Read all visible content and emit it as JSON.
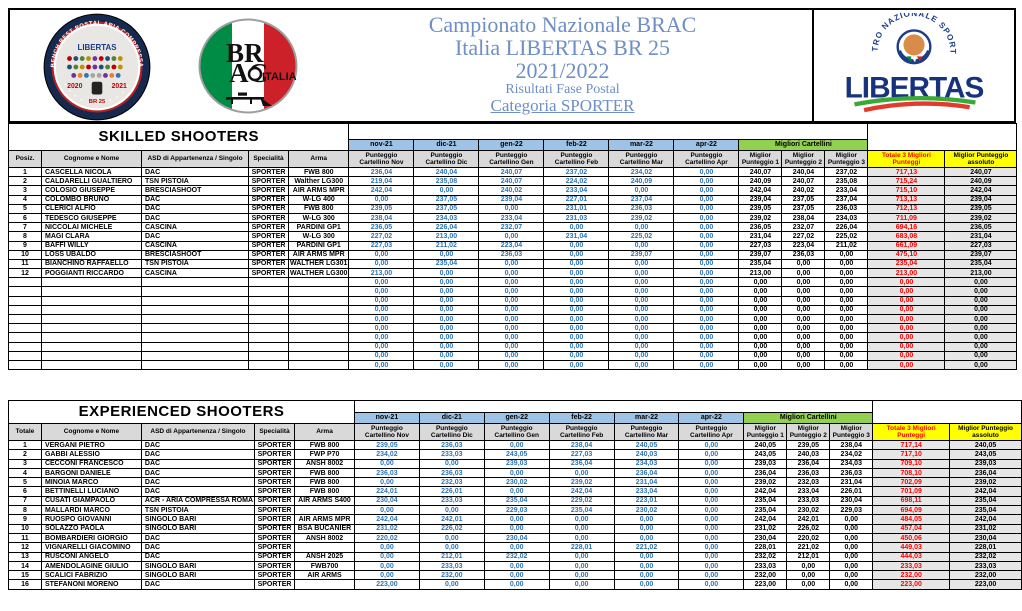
{
  "header": {
    "title_lines": [
      "Campionato Nazionale BRAC",
      "Italia LIBERTAS BR 25",
      "2021/2022"
    ],
    "subtitle": "Risultati Fase Postal",
    "category": "Categoria SPORTER",
    "left_badge": {
      "arc_text": "BENCH REST POSTAL ARIA COMPRESSA",
      "label": "LIBERTAS",
      "year_left": "2020",
      "year_right": "2021",
      "bottom_label": "BR 25"
    },
    "brac_logo": {
      "line1": "BR",
      "line2": "AC",
      "country": "ITALIA"
    },
    "libertas_logo": {
      "arc_text": "CENTRO NAZIONALE SPORTIVO",
      "wordmark": "LIBERTAS"
    }
  },
  "colors": {
    "title_blue": "#6D8EC6",
    "score_value_blue": "#2E75B6",
    "month_header_blue": "#9DC3E6",
    "migliori_green": "#92D050",
    "totals_yellow": "#FFFF00",
    "total_value_red": "#FF0000",
    "header_gray": "#D9D9D9",
    "libertas_navy": "#1B3C87",
    "flag_green": "#008C45",
    "flag_red": "#CD212A"
  },
  "labels": {
    "months": [
      "nov-21",
      "dic-21",
      "gen-22",
      "feb-22",
      "mar-22",
      "apr-22"
    ],
    "score_headers": [
      "Punteggio Cartellino Nov",
      "Punteggio Cartellino Dic",
      "Punteggio Cartellino Gen",
      "Punteggio Cartellino Feb",
      "Punteggio Cartellino Mar",
      "Punteggio Cartellino Apr"
    ],
    "migliori_cartellini": "Migliori Cartellini",
    "best_headers": [
      "Miglior Punteggio 1",
      "Miglior Punteggio 2",
      "Miglior Punteggio 3"
    ],
    "total_header": "Totale 3 Migliori Punteggi",
    "abs_header": "Miglior Punteggio assoluto",
    "col_name": "Cognome e Nome",
    "col_asd": "ASD di Appartenenza / Singolo",
    "col_spec": "Specialità",
    "col_arma": "Arma"
  },
  "tables": [
    {
      "title": "SKILLED SHOOTERS",
      "first_col_header": "Posiz.",
      "empty_rows": 10,
      "rows": [
        {
          "pos": "1",
          "name": "CASCELLA NICOLA",
          "asd": "DAC",
          "spec": "SPORTER",
          "arma": "FWB 800",
          "scores": [
            "236,04",
            "240,04",
            "240,07",
            "237,02",
            "234,02",
            "0,00"
          ],
          "best": [
            "240,07",
            "240,04",
            "237,02"
          ],
          "total": "717,13",
          "abs": "240,07"
        },
        {
          "pos": "2",
          "name": "CALDARELLI GUALTIERO",
          "asd": "TSN PISTOIA",
          "spec": "SPORTER",
          "arma": "Walther LG300",
          "scores": [
            "219,04",
            "235,08",
            "240,07",
            "224,02",
            "240,09",
            "0,00"
          ],
          "best": [
            "240,09",
            "240,07",
            "235,08"
          ],
          "total": "715,24",
          "abs": "240,09"
        },
        {
          "pos": "3",
          "name": "COLOSIO GIUSEPPE",
          "asd": "BRESCIASHOOT",
          "spec": "SPORTER",
          "arma": "AIR ARMS MPR",
          "scores": [
            "242,04",
            "0,00",
            "240,02",
            "233,04",
            "0,00",
            "0,00"
          ],
          "best": [
            "242,04",
            "240,02",
            "233,04"
          ],
          "total": "715,10",
          "abs": "242,04"
        },
        {
          "pos": "4",
          "name": "COLOMBO BRUNO",
          "asd": "DAC",
          "spec": "SPORTER",
          "arma": "W-LG 400",
          "scores": [
            "0,00",
            "237,05",
            "239,04",
            "227,01",
            "237,04",
            "0,00"
          ],
          "best": [
            "239,04",
            "237,05",
            "237,04"
          ],
          "total": "713,13",
          "abs": "239,04"
        },
        {
          "pos": "5",
          "name": "CLERICI ALFIO",
          "asd": "DAC",
          "spec": "SPORTER",
          "arma": "FWB 800",
          "scores": [
            "239,05",
            "237,05",
            "0,00",
            "231,01",
            "236,03",
            "0,00"
          ],
          "best": [
            "239,05",
            "237,05",
            "236,03"
          ],
          "total": "712,13",
          "abs": "239,05"
        },
        {
          "pos": "6",
          "name": "TEDESCO GIUSEPPE",
          "asd": "DAC",
          "spec": "SPORTER",
          "arma": "W-LG 300",
          "scores": [
            "238,04",
            "234,03",
            "233,04",
            "231,03",
            "239,02",
            "0,00"
          ],
          "best": [
            "239,02",
            "238,04",
            "234,03"
          ],
          "total": "711,09",
          "abs": "239,02"
        },
        {
          "pos": "7",
          "name": "NICCOLAI MICHELE",
          "asd": "CASCINA",
          "spec": "SPORTER",
          "arma": "PARDINI GP1",
          "scores": [
            "236,05",
            "226,04",
            "232,07",
            "0,00",
            "0,00",
            "0,00"
          ],
          "best": [
            "236,05",
            "232,07",
            "226,04"
          ],
          "total": "694,16",
          "abs": "236,05"
        },
        {
          "pos": "8",
          "name": "MAGI CLARA",
          "asd": "DAC",
          "spec": "SPORTER",
          "arma": "W-LG 300",
          "scores": [
            "227,02",
            "213,00",
            "0,00",
            "231,04",
            "225,02",
            "0,00"
          ],
          "best": [
            "231,04",
            "227,02",
            "225,02"
          ],
          "total": "683,08",
          "abs": "231,04"
        },
        {
          "pos": "9",
          "name": "BAFFI WILLY",
          "asd": "CASCINA",
          "spec": "SPORTER",
          "arma": "PARDINI GP1",
          "scores": [
            "227,03",
            "211,02",
            "223,04",
            "0,00",
            "0,00",
            "0,00"
          ],
          "best": [
            "227,03",
            "223,04",
            "211,02"
          ],
          "total": "661,09",
          "abs": "227,03"
        },
        {
          "pos": "10",
          "name": "LOSS UBALDO",
          "asd": "BRESCIASHOOT",
          "spec": "SPORTER",
          "arma": "AIR ARMS MPR",
          "scores": [
            "0,00",
            "0,00",
            "236,03",
            "0,00",
            "239,07",
            "0,00"
          ],
          "best": [
            "239,07",
            "236,03",
            "0,00"
          ],
          "total": "475,10",
          "abs": "239,07"
        },
        {
          "pos": "11",
          "name": "BIANCHINO RAFFAELLO",
          "asd": "TSN PISTOIA",
          "spec": "SPORTER",
          "arma": "WALTHER LG301",
          "scores": [
            "0,00",
            "235,04",
            "0,00",
            "0,00",
            "0,00",
            "0,00"
          ],
          "best": [
            "235,04",
            "0,00",
            "0,00"
          ],
          "total": "235,04",
          "abs": "235,04"
        },
        {
          "pos": "12",
          "name": "POGGIANTI RICCARDO",
          "asd": "CASCINA",
          "spec": "SPORTER",
          "arma": "WALTHER LG300",
          "scores": [
            "213,00",
            "0,00",
            "0,00",
            "0,00",
            "0,00",
            "0,00"
          ],
          "best": [
            "213,00",
            "0,00",
            "0,00"
          ],
          "total": "213,00",
          "abs": "213,00"
        }
      ]
    },
    {
      "title": "EXPERIENCED SHOOTERS",
      "first_col_header": "Totale",
      "empty_rows": 0,
      "rows": [
        {
          "pos": "1",
          "name": "VERGANI PIETRO",
          "asd": "DAC",
          "spec": "SPORTER",
          "arma": "FWB 800",
          "scores": [
            "239,05",
            "236,03",
            "0,00",
            "238,04",
            "240,05",
            "0,00"
          ],
          "best": [
            "240,05",
            "239,05",
            "238,04"
          ],
          "total": "717,14",
          "abs": "240,05"
        },
        {
          "pos": "2",
          "name": "GABBI ALESSIO",
          "asd": "DAC",
          "spec": "SPORTER",
          "arma": "FWP P70",
          "scores": [
            "234,02",
            "233,03",
            "243,05",
            "227,03",
            "240,03",
            "0,00"
          ],
          "best": [
            "243,05",
            "240,03",
            "234,02"
          ],
          "total": "717,10",
          "abs": "243,05"
        },
        {
          "pos": "3",
          "name": "CECCONI FRANCESCO",
          "asd": "DAC",
          "spec": "SPORTER",
          "arma": "ANSH 8002",
          "scores": [
            "0,00",
            "0,00",
            "239,03",
            "236,04",
            "234,03",
            "0,00"
          ],
          "best": [
            "239,03",
            "236,04",
            "234,03"
          ],
          "total": "709,10",
          "abs": "239,03"
        },
        {
          "pos": "4",
          "name": "BARGONI DANIELE",
          "asd": "DAC",
          "spec": "SPORTER",
          "arma": "FWB 800",
          "scores": [
            "236,03",
            "236,03",
            "0,00",
            "0,00",
            "236,04",
            "0,00"
          ],
          "best": [
            "236,04",
            "236,03",
            "236,03"
          ],
          "total": "708,10",
          "abs": "236,04"
        },
        {
          "pos": "5",
          "name": "MINOIA MARCO",
          "asd": "DAC",
          "spec": "SPORTER",
          "arma": "FWB 800",
          "scores": [
            "0,00",
            "232,03",
            "230,02",
            "239,02",
            "231,04",
            "0,00"
          ],
          "best": [
            "239,02",
            "232,03",
            "231,04"
          ],
          "total": "702,09",
          "abs": "239,02"
        },
        {
          "pos": "6",
          "name": "BETTINELLI LUCIANO",
          "asd": "DAC",
          "spec": "SPORTER",
          "arma": "FWB 800",
          "scores": [
            "224,01",
            "226,01",
            "0,00",
            "242,04",
            "233,04",
            "0,00"
          ],
          "best": [
            "242,04",
            "233,04",
            "226,01"
          ],
          "total": "701,09",
          "abs": "242,04"
        },
        {
          "pos": "7",
          "name": "CUSATI GIAMPAOLO",
          "asd": "ACR - ARIA COMPRESSA ROMA",
          "spec": "SPORTER",
          "arma": "AIR ARMS S400",
          "scores": [
            "230,04",
            "233,03",
            "235,04",
            "229,02",
            "223,01",
            "0,00"
          ],
          "best": [
            "235,04",
            "233,03",
            "230,04"
          ],
          "total": "698,11",
          "abs": "235,04"
        },
        {
          "pos": "8",
          "name": "MALLARDI MARCO",
          "asd": "TSN PISTOIA",
          "spec": "SPORTER",
          "arma": "",
          "scores": [
            "0,00",
            "0,00",
            "229,03",
            "235,04",
            "230,02",
            "0,00"
          ],
          "best": [
            "235,04",
            "230,02",
            "229,03"
          ],
          "total": "694,09",
          "abs": "235,04"
        },
        {
          "pos": "9",
          "name": "RUOSPO GIOVANNI",
          "asd": "SINGOLO BARI",
          "spec": "SPORTER",
          "arma": "AIR ARMS MPR",
          "scores": [
            "242,04",
            "242,01",
            "0,00",
            "0,00",
            "0,00",
            "0,00"
          ],
          "best": [
            "242,04",
            "242,01",
            "0,00"
          ],
          "total": "484,05",
          "abs": "242,04"
        },
        {
          "pos": "10",
          "name": "SOLAZZO PAOLA",
          "asd": "SINGOLO BARI",
          "spec": "SPORTER",
          "arma": "BSA BUCANIER",
          "scores": [
            "231,02",
            "226,02",
            "0,00",
            "0,00",
            "0,00",
            "0,00"
          ],
          "best": [
            "231,02",
            "226,02",
            "0,00"
          ],
          "total": "457,04",
          "abs": "231,02"
        },
        {
          "pos": "11",
          "name": "BOMBARDIERI GIORGIO",
          "asd": "DAC",
          "spec": "SPORTER",
          "arma": "ANSH 8002",
          "scores": [
            "220,02",
            "0,00",
            "230,04",
            "0,00",
            "0,00",
            "0,00"
          ],
          "best": [
            "230,04",
            "220,02",
            "0,00"
          ],
          "total": "450,06",
          "abs": "230,04"
        },
        {
          "pos": "12",
          "name": "VIGNARELLI GIACOMINO",
          "asd": "DAC",
          "spec": "SPORTER",
          "arma": "",
          "scores": [
            "0,00",
            "0,00",
            "0,00",
            "228,01",
            "221,02",
            "0,00"
          ],
          "best": [
            "228,01",
            "221,02",
            "0,00"
          ],
          "total": "449,03",
          "abs": "228,01"
        },
        {
          "pos": "13",
          "name": "RUSCONI ANGELO",
          "asd": "DAC",
          "spec": "SPORTER",
          "arma": "ANSH 2025",
          "scores": [
            "0,00",
            "212,01",
            "232,02",
            "0,00",
            "0,00",
            "0,00"
          ],
          "best": [
            "232,02",
            "212,01",
            "0,00"
          ],
          "total": "444,03",
          "abs": "232,02"
        },
        {
          "pos": "14",
          "name": "AMENDOLAGINE GIULIO",
          "asd": "SINGOLO BARI",
          "spec": "SPORTER",
          "arma": "FWB700",
          "scores": [
            "0,00",
            "233,03",
            "0,00",
            "0,00",
            "0,00",
            "0,00"
          ],
          "best": [
            "233,03",
            "0,00",
            "0,00"
          ],
          "total": "233,03",
          "abs": "233,03"
        },
        {
          "pos": "15",
          "name": "SCALICI FABRIZIO",
          "asd": "SINGOLO BARI",
          "spec": "SPORTER",
          "arma": "AIR ARMS",
          "scores": [
            "0,00",
            "232,00",
            "0,00",
            "0,00",
            "0,00",
            "0,00"
          ],
          "best": [
            "232,00",
            "0,00",
            "0,00"
          ],
          "total": "232,00",
          "abs": "232,00"
        },
        {
          "pos": "16",
          "name": "STEFANONI MORENO",
          "asd": "DAC",
          "spec": "SPORTER",
          "arma": "",
          "scores": [
            "223,00",
            "0,00",
            "0,00",
            "0,00",
            "0,00",
            "0,00"
          ],
          "best": [
            "223,00",
            "0,00",
            "0,00"
          ],
          "total": "223,00",
          "abs": "223,00"
        }
      ]
    }
  ]
}
